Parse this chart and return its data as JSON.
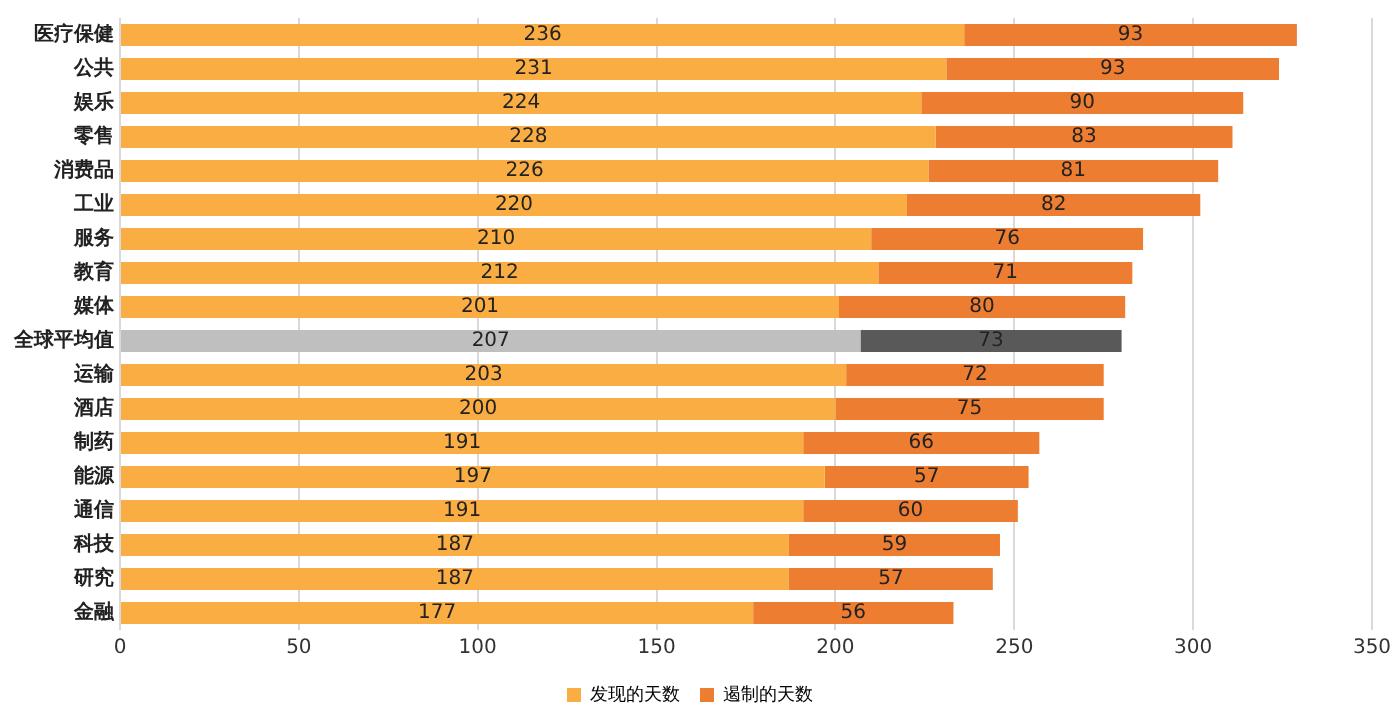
{
  "chart_data": {
    "type": "bar",
    "orientation": "horizontal",
    "stacked": true,
    "categories": [
      "医疗保健",
      "公共",
      "娱乐",
      "零售",
      "消费品",
      "工业",
      "服务",
      "教育",
      "媒体",
      "全球平均值",
      "运输",
      "酒店",
      "制药",
      "能源",
      "通信",
      "科技",
      "研究",
      "金融"
    ],
    "series": [
      {
        "name": "发现的天数",
        "color": "#f9ad42",
        "colors": [
          "#f9ad42",
          "#f9ad42",
          "#f9ad42",
          "#f9ad42",
          "#f9ad42",
          "#f9ad42",
          "#f9ad42",
          "#f9ad42",
          "#f9ad42",
          "#bfbfbf",
          "#f9ad42",
          "#f9ad42",
          "#f9ad42",
          "#f9ad42",
          "#f9ad42",
          "#f9ad42",
          "#f9ad42",
          "#f9ad42"
        ],
        "values": [
          236,
          231,
          224,
          228,
          226,
          220,
          210,
          212,
          201,
          207,
          203,
          200,
          191,
          197,
          191,
          187,
          187,
          177
        ]
      },
      {
        "name": "遏制的天数",
        "color": "#ed7d31",
        "colors": [
          "#ed7d31",
          "#ed7d31",
          "#ed7d31",
          "#ed7d31",
          "#ed7d31",
          "#ed7d31",
          "#ed7d31",
          "#ed7d31",
          "#ed7d31",
          "#595959",
          "#ed7d31",
          "#ed7d31",
          "#ed7d31",
          "#ed7d31",
          "#ed7d31",
          "#ed7d31",
          "#ed7d31",
          "#ed7d31"
        ],
        "values": [
          93,
          93,
          90,
          83,
          81,
          82,
          76,
          71,
          80,
          73,
          72,
          75,
          66,
          57,
          60,
          59,
          57,
          56
        ]
      }
    ],
    "xlim": [
      0,
      350
    ],
    "xticks": [
      0,
      50,
      100,
      150,
      200,
      250,
      300,
      350
    ],
    "grid": "x",
    "legend": "bottom",
    "data_labels": true
  }
}
